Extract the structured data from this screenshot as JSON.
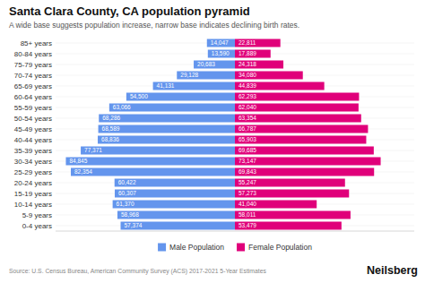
{
  "chart_data": {
    "type": "pyramid",
    "orientation": "horizontal",
    "title": "Santa Clara County, CA population pyramid",
    "subtitle": "A wide base suggests population increase, narrow base indicates declining birth rates.",
    "annotations": [
      "Source: U.S. Census Bureau, American Community Survey (ACS) 2017-2021 5-Year Estimates",
      "Neilsberg"
    ],
    "categories": [
      "0-4 years",
      "5-9 years",
      "10-14 years",
      "15-19 years",
      "20-24 years",
      "25-29 years",
      "30-34 years",
      "35-39 years",
      "40-44 years",
      "45-49 years",
      "50-54 years",
      "55-59 years",
      "60-64 years",
      "65-69 years",
      "70-74 years",
      "75-79 years",
      "80-84 years",
      "85+ years"
    ],
    "series": [
      {
        "name": "Male Population",
        "color": "#6495ED",
        "values": [
          57374,
          58968,
          61370,
          60307,
          60422,
          82354,
          84845,
          77371,
          68836,
          68589,
          68286,
          63066,
          54500,
          41131,
          29128,
          20683,
          13590,
          14047
        ],
        "value_labels": [
          "57,374",
          "58,968",
          "61,370",
          "60,307",
          "60,422",
          "82,354",
          "84,845",
          "77,371",
          "68,836",
          "68,589",
          "68,286",
          "63,066",
          "54,500",
          "41,131",
          "29,128",
          "20,683",
          "13,590",
          "14,047"
        ]
      },
      {
        "name": "Female Population",
        "color": "#E0007A",
        "values": [
          53479,
          58011,
          41040,
          57273,
          55247,
          69843,
          73147,
          69685,
          65903,
          66787,
          63354,
          62040,
          62293,
          44839,
          34080,
          24318,
          17889,
          22811
        ],
        "value_labels": [
          "53,479",
          "58,011",
          "41,040",
          "57,273",
          "55,247",
          "69,843",
          "73,147",
          "69,685",
          "65,903",
          "66,787",
          "63,354",
          "62,040",
          "62,293",
          "44,839",
          "34,080",
          "24,318",
          "17,889",
          "22,811"
        ]
      }
    ],
    "xlim": [
      -90000,
      90000
    ],
    "tick_labels": "y",
    "grid": true,
    "data_labels": true,
    "legend": "bottom"
  }
}
